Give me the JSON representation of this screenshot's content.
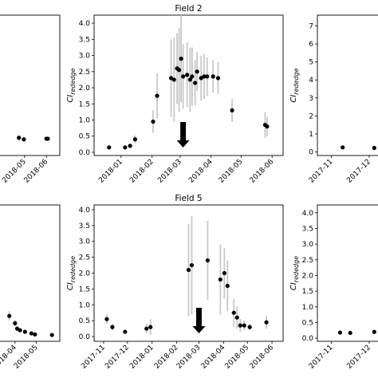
{
  "colors": {
    "point": "#000000",
    "errorbar": "#c8c8c8",
    "axis": "#000000",
    "arrow": "#000000"
  },
  "chart_data": [
    {
      "id": "p-top-left",
      "type": "scatter",
      "title": "",
      "ylabel": "",
      "xticks": [
        "2018-05",
        "2018-06"
      ],
      "x": [
        "2018-04-23",
        "2018-04-30",
        "2018-06-01",
        "2018-06-03"
      ],
      "values": [
        0.45,
        0.4,
        0.42,
        0.42
      ],
      "err": [
        0.08,
        0.06,
        0.05,
        0.05
      ],
      "grid": false
    },
    {
      "id": "p-field-2",
      "type": "scatter",
      "title": "Field 2",
      "ylabel": "CI_rededge",
      "ylim": [
        -0.1,
        4.25
      ],
      "yticks": [
        "0.0",
        "0.5",
        "1.0",
        "1.5",
        "2.0",
        "2.5",
        "3.0",
        "3.5",
        "4.0"
      ],
      "xticks": [
        "2018-01",
        "2018-02",
        "2018-03",
        "2018-04",
        "2018-05",
        "2018-06"
      ],
      "x": [
        "2017-12-20",
        "2018-01-05",
        "2018-01-10",
        "2018-01-15",
        "2018-02-02",
        "2018-02-06",
        "2018-02-20",
        "2018-02-23",
        "2018-02-26",
        "2018-02-28",
        "2018-03-02",
        "2018-03-04",
        "2018-03-08",
        "2018-03-11",
        "2018-03-13",
        "2018-03-16",
        "2018-03-18",
        "2018-03-22",
        "2018-03-25",
        "2018-03-28",
        "2018-04-03",
        "2018-04-08",
        "2018-04-22",
        "2018-05-25",
        "2018-05-27"
      ],
      "values": [
        0.15,
        0.15,
        0.2,
        0.4,
        0.95,
        1.75,
        2.3,
        2.25,
        2.6,
        2.55,
        2.9,
        2.35,
        2.4,
        2.25,
        2.35,
        2.15,
        2.5,
        2.3,
        2.35,
        2.35,
        2.35,
        2.3,
        1.3,
        0.85,
        0.8
      ],
      "err": [
        0.05,
        0.05,
        0.05,
        0.12,
        0.35,
        0.7,
        1.2,
        1.3,
        1.1,
        1.3,
        1.35,
        1.0,
        1.0,
        1.0,
        0.9,
        0.7,
        0.6,
        0.7,
        0.7,
        0.6,
        0.5,
        0.5,
        0.35,
        0.4,
        0.3
      ],
      "arrow_at": "2018-03-04",
      "grid": false
    },
    {
      "id": "p-top-right",
      "type": "scatter",
      "title": "",
      "ylabel": "CI_rededge",
      "ylim": [
        -0.2,
        7.6
      ],
      "yticks": [
        "0",
        "1",
        "2",
        "3",
        "4",
        "5",
        "6",
        "7"
      ],
      "xticks": [
        "2017-11",
        "2017-12"
      ],
      "x": [
        "2017-11-10",
        "2017-12-05",
        "2017-12-12"
      ],
      "values": [
        0.25,
        0.22,
        0.2
      ],
      "err": [
        0.05,
        0.05,
        0.05
      ],
      "grid": false
    },
    {
      "id": "p-bottom-left",
      "type": "scatter",
      "title": "",
      "ylabel": "",
      "xticks": [
        "2018-04",
        "2018-05"
      ],
      "x": [
        "2018-03-24",
        "2018-04-01",
        "2018-04-04",
        "2018-04-08",
        "2018-04-15",
        "2018-04-24",
        "2018-04-29",
        "2018-05-23"
      ],
      "values": [
        0.65,
        0.42,
        0.25,
        0.2,
        0.15,
        0.1,
        0.07,
        0.05
      ],
      "err": [
        0.15,
        0.1,
        0.08,
        0.05,
        0.05,
        0.04,
        0.04,
        0.04
      ],
      "grid": false
    },
    {
      "id": "p-field-5",
      "type": "scatter",
      "title": "Field 5",
      "ylabel": "CI_rededge",
      "ylim": [
        -0.15,
        4.15
      ],
      "yticks": [
        "0.0",
        "0.5",
        "1.0",
        "1.5",
        "2.0",
        "2.5",
        "3.0",
        "3.5",
        "4.0"
      ],
      "xticks": [
        "2017-11",
        "2017-12",
        "2018-01",
        "2018-02",
        "2018-03",
        "2018-04",
        "2018-05",
        "2018-06"
      ],
      "x": [
        "2017-11-05",
        "2017-11-12",
        "2017-11-28",
        "2017-12-25",
        "2017-12-30",
        "2018-02-16",
        "2018-02-20",
        "2018-03-12",
        "2018-03-28",
        "2018-04-02",
        "2018-04-06",
        "2018-04-14",
        "2018-04-18",
        "2018-04-22",
        "2018-04-27",
        "2018-05-04",
        "2018-05-25"
      ],
      "values": [
        0.55,
        0.3,
        0.15,
        0.25,
        0.3,
        2.1,
        2.25,
        2.4,
        1.8,
        2.0,
        1.6,
        0.75,
        0.6,
        0.35,
        0.35,
        0.3,
        0.45
      ],
      "err": [
        0.15,
        0.1,
        0.05,
        0.15,
        0.25,
        1.45,
        1.55,
        1.25,
        1.1,
        0.8,
        0.8,
        0.45,
        0.35,
        0.2,
        0.15,
        0.1,
        0.2
      ],
      "arrow_at": "2018-03-01",
      "grid": false
    },
    {
      "id": "p-bottom-right",
      "type": "scatter",
      "title": "",
      "ylabel": "CI_rededge",
      "ylim": [
        -0.1,
        4.25
      ],
      "yticks": [
        "0.0",
        "0.5",
        "1.0",
        "1.5",
        "2.0",
        "2.5",
        "3.0",
        "3.5",
        "4.0"
      ],
      "xticks": [
        "2017-11",
        "2017-12"
      ],
      "x": [
        "2017-11-08",
        "2017-11-16",
        "2017-12-05"
      ],
      "values": [
        0.18,
        0.17,
        0.2
      ],
      "err": [
        0.05,
        0.04,
        0.05
      ],
      "grid": false
    }
  ]
}
